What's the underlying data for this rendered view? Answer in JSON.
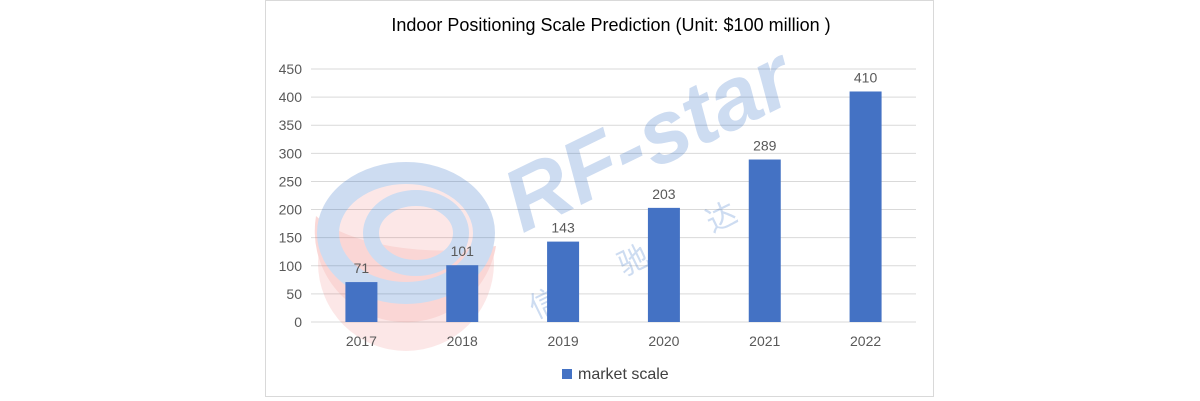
{
  "chart_data": {
    "type": "bar",
    "title": "Indoor Positioning Scale Prediction (Unit: $100 million )",
    "categories": [
      "2017",
      "2018",
      "2019",
      "2020",
      "2021",
      "2022"
    ],
    "series": [
      {
        "name": "market scale",
        "values": [
          71,
          101,
          143,
          203,
          289,
          410
        ]
      }
    ],
    "y_ticks": [
      "0",
      "50",
      "100",
      "150",
      "200",
      "250",
      "300",
      "350",
      "400",
      "450"
    ],
    "ylim": [
      0,
      450
    ],
    "grid": true,
    "legend": "bottom",
    "colors": {
      "bar": "#4472c4",
      "grid": "#d9d9d9",
      "tick_text": "#595959",
      "title_text": "#000000"
    }
  },
  "watermark": {
    "text": "RF-star",
    "subtext": "信 驰 达",
    "colors": {
      "blue": "#1f5fbf",
      "red": "#e8403a"
    }
  }
}
